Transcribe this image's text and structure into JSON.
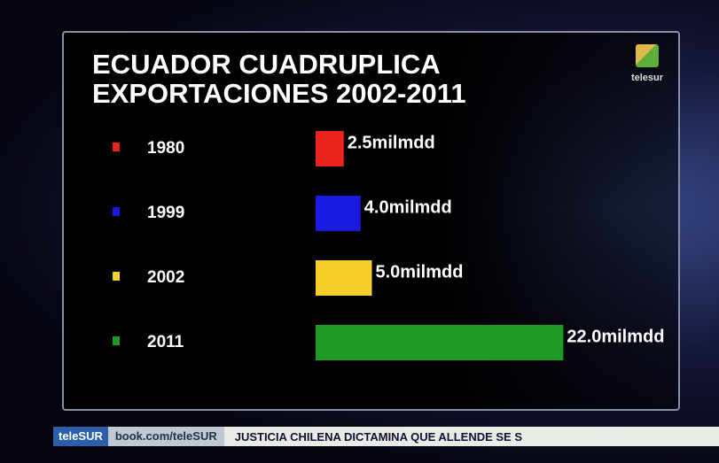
{
  "chart_data": {
    "type": "hbar",
    "title": "ECUADOR CUADRUPLICA EXPORTACIONES 2002-2011",
    "categories": [
      "1980",
      "1999",
      "2002",
      "2011"
    ],
    "values": [
      2.5,
      4.0,
      5.0,
      22.0
    ],
    "value_labels": [
      "2.5milmdd",
      "4.0milmdd",
      "5.0milmdd",
      "22.0milmdd"
    ],
    "colors": [
      "#e8241c",
      "#1a1ae0",
      "#f5cf2a",
      "#1f9a22"
    ]
  },
  "logo": "telesur",
  "ticker": {
    "brand": "teleSUR",
    "url": "book.com/teleSUR",
    "headline": "JUSTICIA CHILENA DICTAMINA QUE ALLENDE SE S"
  }
}
